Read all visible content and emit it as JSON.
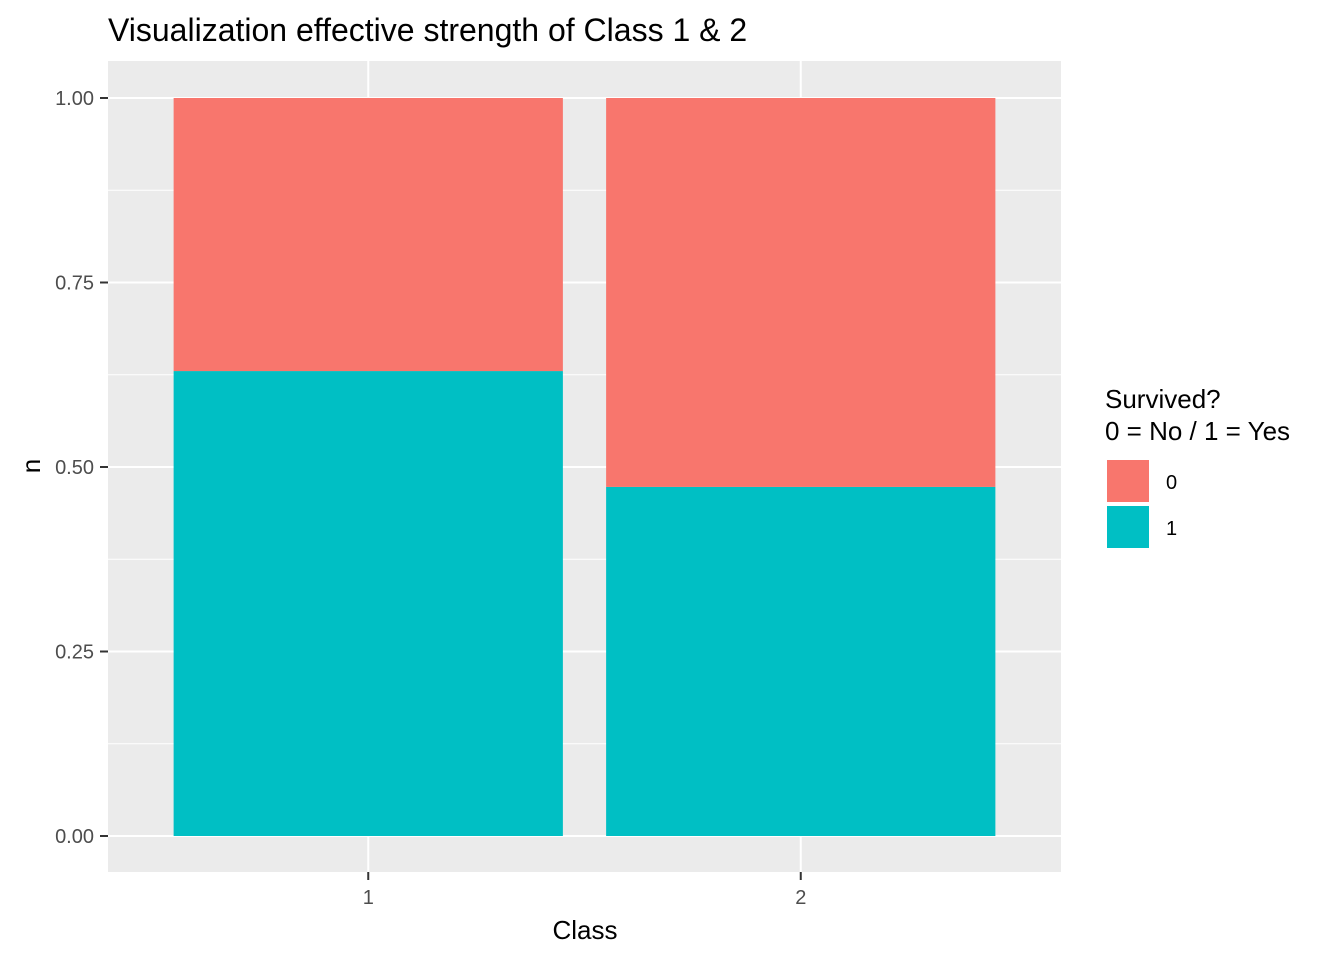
{
  "chart_data": {
    "type": "bar",
    "stacked": true,
    "position": "fill",
    "title": "Visualization effective strength of Class 1 & 2",
    "xlabel": "Class",
    "ylabel": "n",
    "categories": [
      "1",
      "2"
    ],
    "series": [
      {
        "name": "0",
        "values": [
          0.37,
          0.527
        ],
        "color": "#F8766D"
      },
      {
        "name": "1",
        "values": [
          0.63,
          0.473
        ],
        "color": "#00BFC4"
      }
    ],
    "ylim": [
      0,
      1
    ],
    "yticks": [
      0.0,
      0.25,
      0.5,
      0.75,
      1.0
    ],
    "ytick_labels": [
      "0.00",
      "0.25",
      "0.50",
      "0.75",
      "1.00"
    ],
    "grid": true,
    "panel_background": "#EBEBEB",
    "legend": {
      "title_lines": [
        "Survived?",
        "0 = No / 1 = Yes"
      ],
      "placement": "right",
      "entries": [
        "0",
        "1"
      ]
    }
  }
}
